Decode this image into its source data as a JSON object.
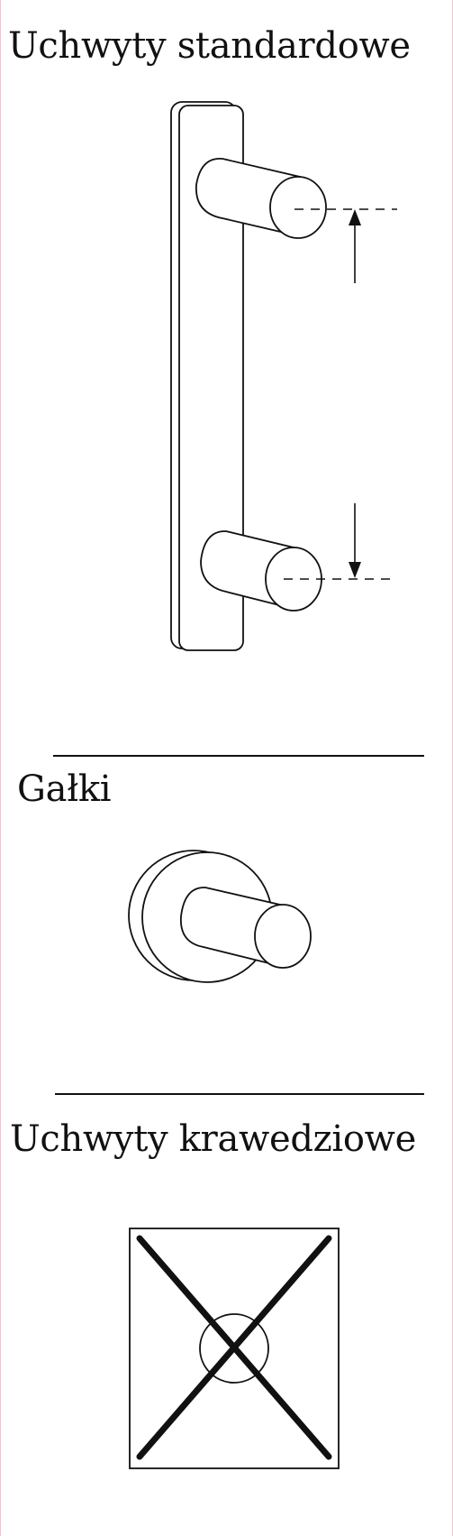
{
  "sections": {
    "standard": {
      "title": "Uchwyty standardowe"
    },
    "knobs": {
      "title": "Gałki"
    },
    "edge": {
      "title": "Uchwyty krawedziowe"
    }
  }
}
